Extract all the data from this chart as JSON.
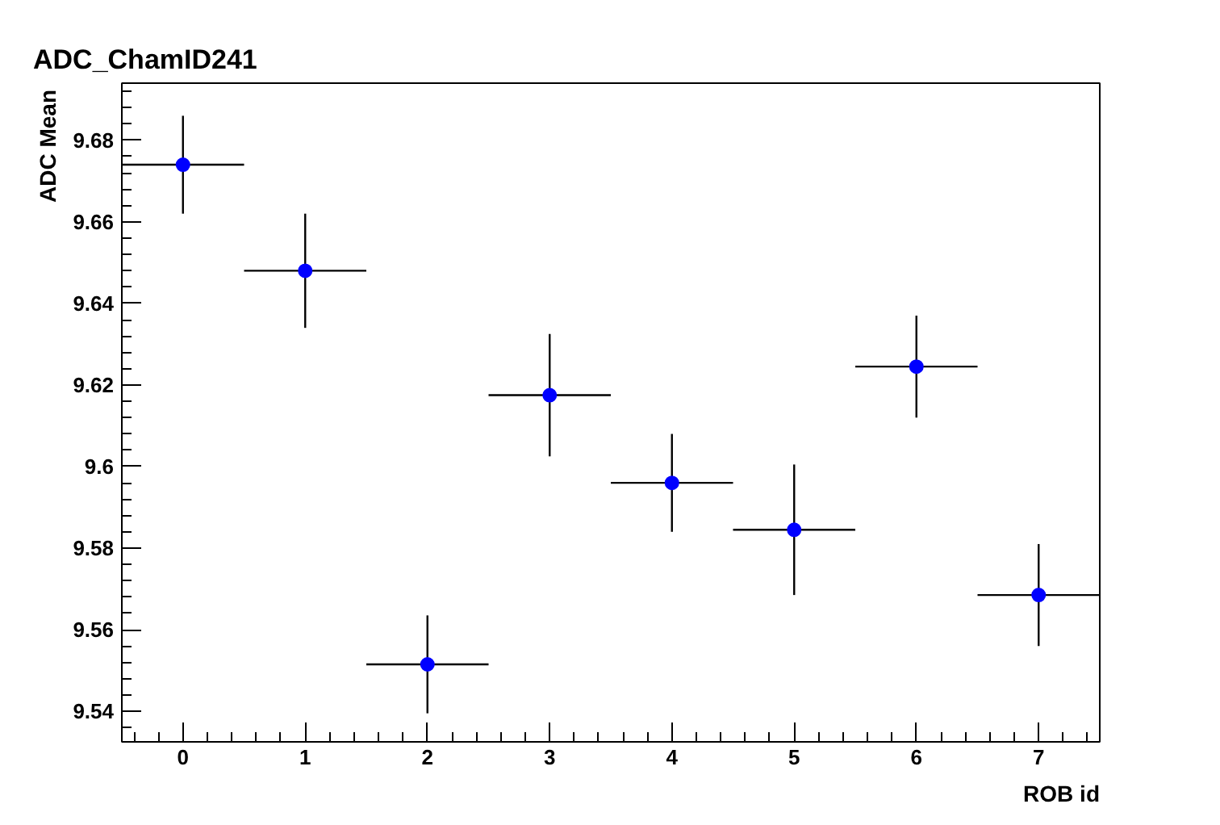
{
  "chart_data": {
    "type": "scatter",
    "title": "ADC_ChamID241",
    "xlabel": "ROB id",
    "ylabel": "ADC Mean",
    "x": [
      0,
      1,
      2,
      3,
      4,
      5,
      6,
      7
    ],
    "values": [
      9.674,
      9.648,
      9.5515,
      9.6175,
      9.596,
      9.5845,
      9.6245,
      9.5685
    ],
    "errors": [
      0.012,
      0.014,
      0.012,
      0.015,
      0.012,
      0.016,
      0.0125,
      0.0125
    ],
    "xerrors": [
      0.5,
      0.5,
      0.5,
      0.5,
      0.5,
      0.5,
      0.5,
      0.5
    ],
    "color": "#0000ff",
    "marker": "circle",
    "grid": false,
    "xlim": [
      -0.5,
      7.5
    ],
    "xticks": [
      0,
      1,
      2,
      3,
      4,
      5,
      6,
      7
    ],
    "ylim": [
      9.5325,
      9.694
    ],
    "yticks": [
      9.54,
      9.56,
      9.58,
      {
        "value": 9.6,
        "label": "9.6"
      },
      9.62,
      9.64,
      9.66,
      9.68
    ]
  }
}
